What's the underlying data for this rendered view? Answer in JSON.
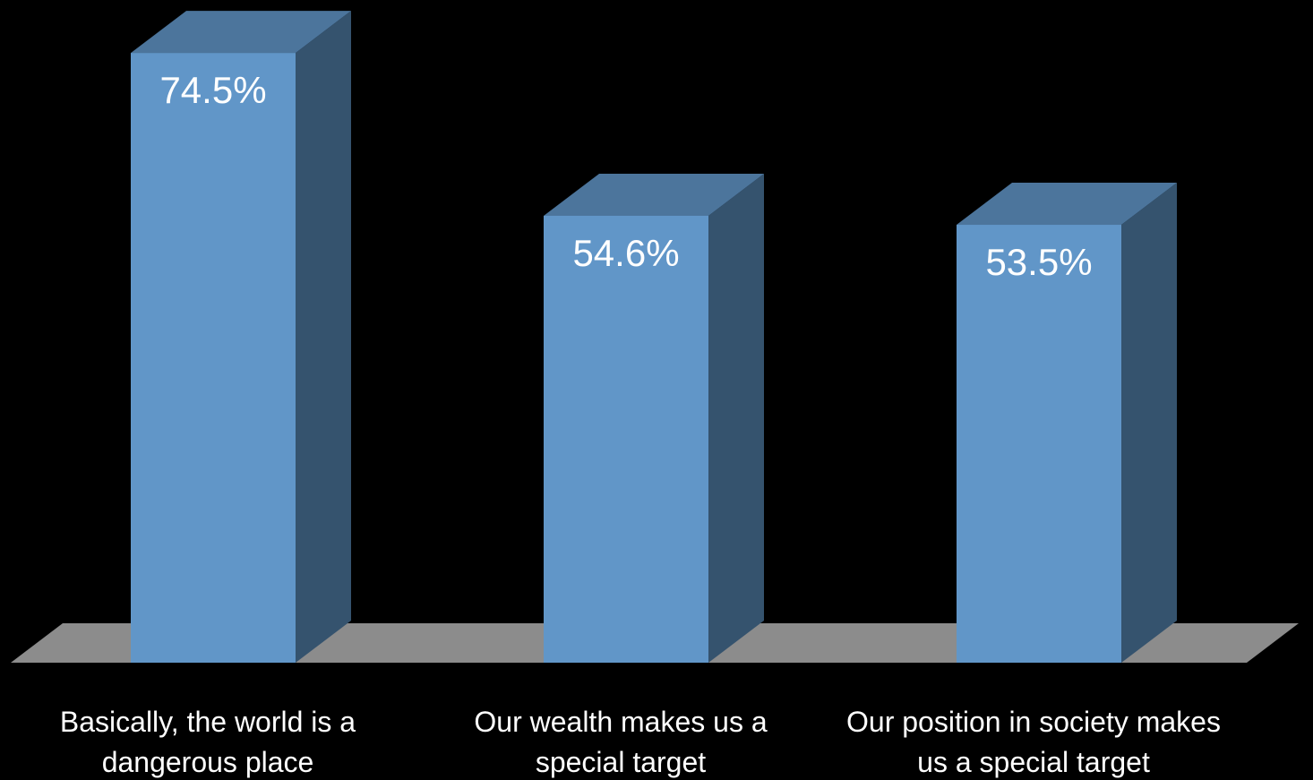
{
  "chart_data": {
    "type": "bar3d",
    "categories": [
      "Basically, the world is a\ndangerous place",
      "Our wealth makes us a\nspecial target",
      "Our position in society makes\nus a special target"
    ],
    "values": [
      74.5,
      54.6,
      53.5
    ],
    "value_labels": [
      "74.5%",
      "54.6%",
      "53.5%"
    ],
    "color": "#6196c8"
  }
}
